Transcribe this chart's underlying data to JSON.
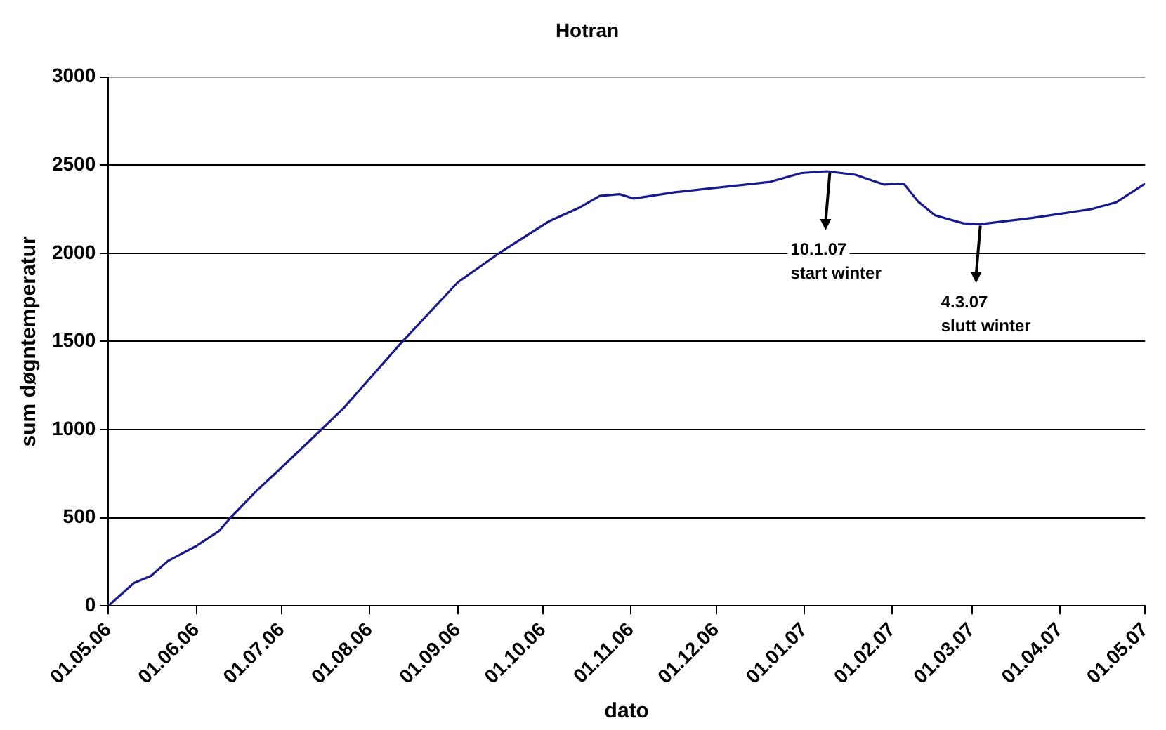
{
  "chart_data": {
    "type": "line",
    "title": "Hotran",
    "xlabel": "dato",
    "ylabel": "sum døgntemperatur",
    "x": [
      "2006-05-01",
      "2006-05-10",
      "2006-05-16",
      "2006-05-22",
      "2006-06-01",
      "2006-06-09",
      "2006-06-13",
      "2006-06-22",
      "2006-06-30",
      "2006-07-15",
      "2006-07-23",
      "2006-08-12",
      "2006-09-01",
      "2006-09-16",
      "2006-10-03",
      "2006-10-14",
      "2006-10-21",
      "2006-10-28",
      "2006-11-02",
      "2006-11-16",
      "2006-12-20",
      "2006-12-31",
      "2007-01-09",
      "2007-01-19",
      "2007-01-29",
      "2007-02-05",
      "2007-02-10",
      "2007-02-16",
      "2007-02-26",
      "2007-03-04",
      "2007-03-22",
      "2007-04-12",
      "2007-04-21",
      "2007-05-01"
    ],
    "series": [
      {
        "color": "#1a1a8c",
        "values": [
          0,
          130,
          170,
          255,
          340,
          425,
          500,
          650,
          770,
          1000,
          1125,
          1490,
          1835,
          2005,
          2180,
          2260,
          2325,
          2335,
          2310,
          2345,
          2405,
          2455,
          2465,
          2445,
          2390,
          2395,
          2295,
          2215,
          2170,
          2165,
          2200,
          2250,
          2290,
          2395
        ]
      }
    ],
    "xlim": [
      "2006-05-01",
      "2007-05-01"
    ],
    "xticks": [
      {
        "value": "2006-05-01",
        "label": "01.05.06"
      },
      {
        "value": "2006-06-01",
        "label": "01.06.06"
      },
      {
        "value": "2006-07-01",
        "label": "01.07.06"
      },
      {
        "value": "2006-08-01",
        "label": "01.08.06"
      },
      {
        "value": "2006-09-01",
        "label": "01.09.06"
      },
      {
        "value": "2006-10-01",
        "label": "01.10.06"
      },
      {
        "value": "2006-11-01",
        "label": "01.11.06"
      },
      {
        "value": "2006-12-01",
        "label": "01.12.06"
      },
      {
        "value": "2007-01-01",
        "label": "01.01.07"
      },
      {
        "value": "2007-02-01",
        "label": "01.02.07"
      },
      {
        "value": "2007-03-01",
        "label": "01.03.07"
      },
      {
        "value": "2007-04-01",
        "label": "01.04.07"
      },
      {
        "value": "2007-05-01",
        "label": "01.05.07"
      }
    ],
    "ylim": [
      0,
      3000
    ],
    "yticks": [
      0,
      500,
      1000,
      1500,
      2000,
      2500,
      3000
    ],
    "grid": "y",
    "legend": false,
    "marker": "none",
    "line_style": "solid",
    "annotations": [
      {
        "text": "10.1.07\nstart winter",
        "x": "2007-01-10",
        "y": 2465
      },
      {
        "text": "4.3.07\nslutt winter",
        "x": "2007-03-04",
        "y": 2165
      }
    ]
  }
}
